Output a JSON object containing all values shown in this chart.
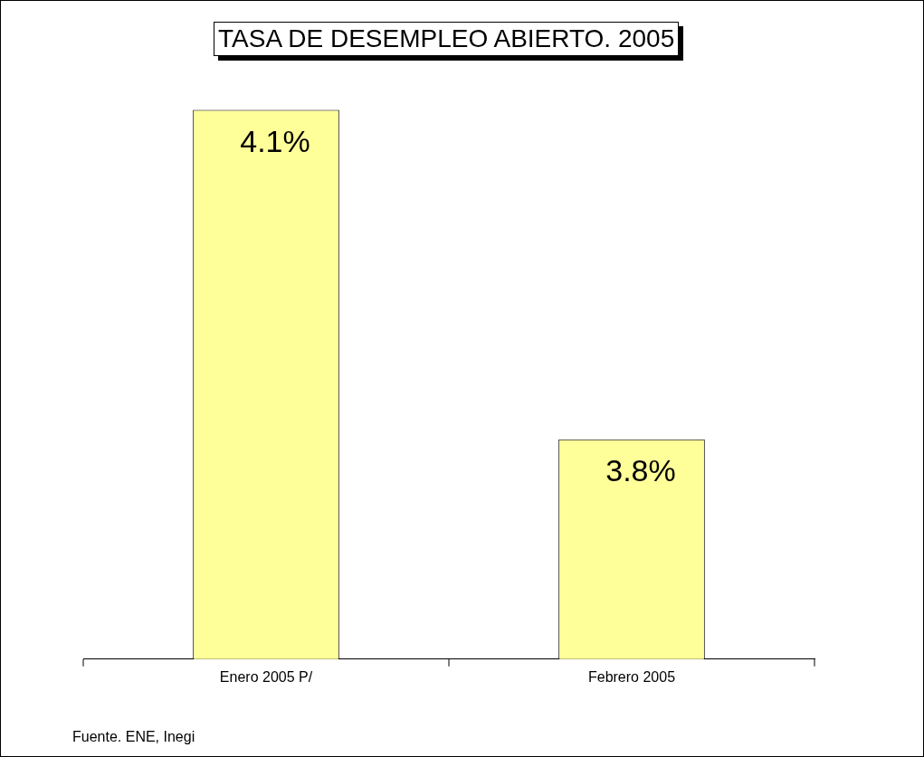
{
  "chart_data": {
    "type": "bar",
    "title": "TASA DE DESEMPLEO ABIERTO. 2005",
    "categories": [
      "Enero 2005 P/",
      "Febrero 2005"
    ],
    "values": [
      4.1,
      3.8
    ],
    "value_labels": [
      "4.1%",
      "3.8%"
    ],
    "color": "#ffff99",
    "ylim": [
      3.6,
      4.2
    ],
    "grid": false,
    "legend": false,
    "annotations": [
      "Fuente. ENE, Inegi"
    ]
  }
}
